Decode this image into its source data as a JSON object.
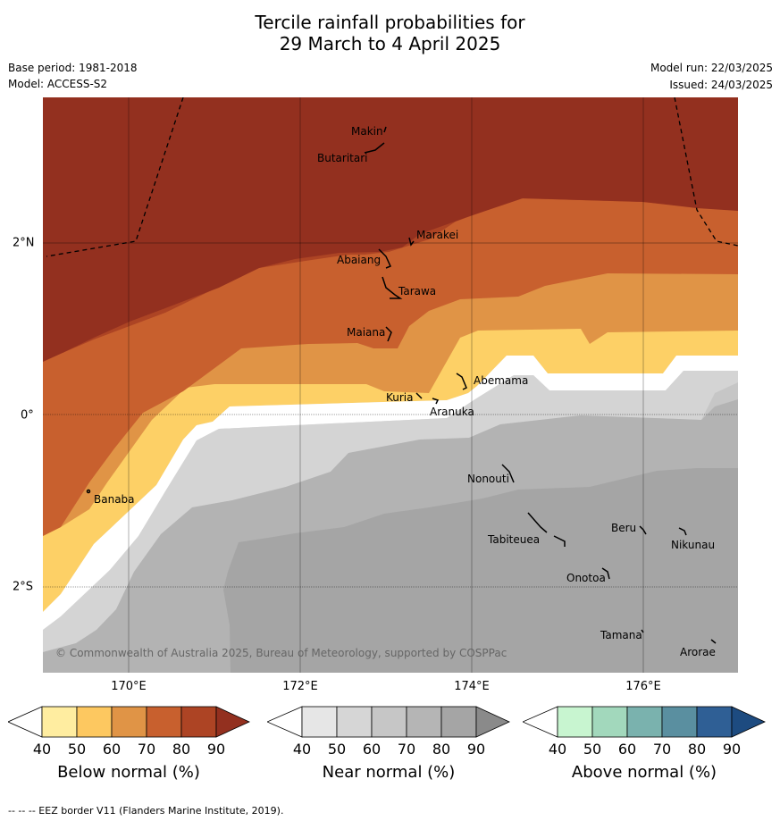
{
  "title": {
    "line1": "Tercile rainfall probabilities for",
    "line2": "29 March to 4 April 2025"
  },
  "meta": {
    "base_period": "Base period: 1981-2018",
    "model": "Model: ACCESS-S2",
    "model_run": "Model run: 22/03/2025",
    "issued": "Issued: 24/03/2025"
  },
  "axes": {
    "x_ticks": [
      "170°E",
      "172°E",
      "174°E",
      "176°E"
    ],
    "y_ticks": [
      "2°N",
      "0°",
      "2°S"
    ]
  },
  "islands": [
    "Makin",
    "Butaritari",
    "Marakei",
    "Abaiang",
    "Tarawa",
    "Maiana",
    "Abemama",
    "Kuria",
    "Aranuka",
    "Banaba",
    "Nonouti",
    "Tabiteuea",
    "Beru",
    "Nikunau",
    "Onotoa",
    "Tamana",
    "Arorae"
  ],
  "copyright": "© Commonwealth of Australia 2025, Bureau of Meteorology, supported by COSPPac",
  "colorbars": [
    {
      "title": "Below normal (%)",
      "ticks": [
        "40",
        "50",
        "60",
        "70",
        "80",
        "90"
      ],
      "colors": [
        "#ffeda0",
        "#fdc860",
        "#e09446",
        "#c8602e",
        "#ad4424",
        "#93301f"
      ]
    },
    {
      "title": "Near normal (%)",
      "ticks": [
        "40",
        "50",
        "60",
        "70",
        "80",
        "90"
      ],
      "colors": [
        "#e6e6e6",
        "#d6d6d6",
        "#c6c6c6",
        "#b5b5b5",
        "#a5a5a5",
        "#8a8a8a"
      ]
    },
    {
      "title": "Above normal (%)",
      "ticks": [
        "40",
        "50",
        "60",
        "70",
        "80",
        "90"
      ],
      "colors": [
        "#c8f5d0",
        "#a2d8bc",
        "#7ab2ae",
        "#5a8fa0",
        "#2f5f95",
        "#1d4b80"
      ]
    }
  ],
  "footer": "--  --  -- EEZ border V11 (Flanders Marine Institute, 2019)."
}
